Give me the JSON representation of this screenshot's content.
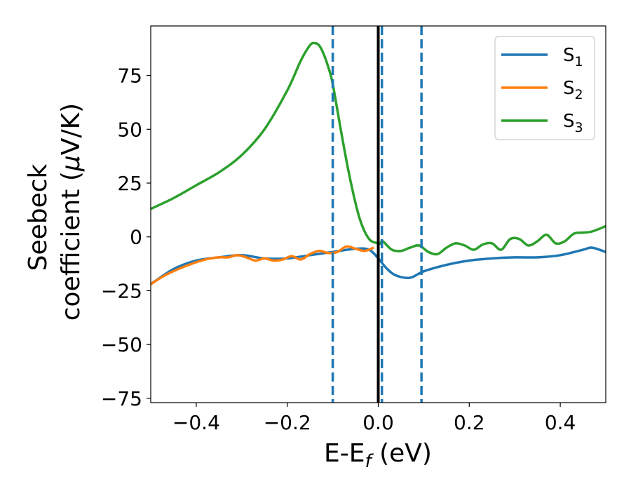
{
  "chart_data": {
    "type": "line",
    "xlabel": "E-E",
    "xlabel_sub": "f",
    "xlabel_unit": " (eV)",
    "ylabel_line1": "Seebeck",
    "ylabel_line2": "coefficient  (",
    "ylabel_mu": "μ",
    "ylabel_unit": "V/K)",
    "xlim": [
      -0.5,
      0.5
    ],
    "ylim": [
      -77,
      98
    ],
    "xticks": [
      -0.4,
      -0.2,
      0.0,
      0.2,
      0.4
    ],
    "xtick_labels": [
      "−0.4",
      "−0.2",
      "0.0",
      "0.2",
      "0.4"
    ],
    "yticks": [
      -75,
      -50,
      -25,
      0,
      25,
      50,
      75
    ],
    "ytick_labels": [
      "−75",
      "−50",
      "−25",
      "0",
      "25",
      "50",
      "75"
    ],
    "grid": false,
    "legend_position": "top-right",
    "vertical_lines": [
      {
        "x": -0.1,
        "style": "dashed",
        "color": "#1f77b4"
      },
      {
        "x": 0.008,
        "style": "dashed",
        "color": "#1f77b4"
      },
      {
        "x": 0.095,
        "style": "dashed",
        "color": "#1f77b4"
      },
      {
        "x": 0.0,
        "style": "solid",
        "color": "#000000"
      }
    ],
    "series": [
      {
        "name": "S",
        "sub": "1",
        "color": "#1f77b4",
        "x": [
          -0.5,
          -0.45,
          -0.4,
          -0.35,
          -0.3,
          -0.25,
          -0.2,
          -0.15,
          -0.1,
          -0.05,
          -0.02,
          0.0,
          0.02,
          0.04,
          0.07,
          0.1,
          0.15,
          0.2,
          0.25,
          0.3,
          0.35,
          0.4,
          0.45,
          0.47,
          0.5
        ],
        "y": [
          -22,
          -15,
          -11,
          -9.5,
          -8.5,
          -10,
          -10,
          -8.5,
          -7,
          -5.5,
          -6,
          -10,
          -15,
          -18,
          -19,
          -16,
          -13,
          -11,
          -10,
          -9.5,
          -9.5,
          -8.5,
          -6,
          -5,
          -7
        ]
      },
      {
        "name": "S",
        "sub": "2",
        "color": "#ff7f0e",
        "x": [
          -0.5,
          -0.47,
          -0.44,
          -0.41,
          -0.38,
          -0.35,
          -0.33,
          -0.31,
          -0.29,
          -0.27,
          -0.25,
          -0.23,
          -0.21,
          -0.19,
          -0.17,
          -0.15,
          -0.13,
          -0.11,
          -0.09,
          -0.07,
          -0.05,
          -0.03,
          -0.01
        ],
        "y": [
          -22,
          -18,
          -15,
          -12.5,
          -10.5,
          -9.5,
          -9.5,
          -8.5,
          -9.5,
          -11,
          -10,
          -11,
          -10.5,
          -9,
          -10.5,
          -8,
          -6.5,
          -7.5,
          -7,
          -4.5,
          -5.5,
          -6.5,
          -5
        ]
      },
      {
        "name": "S",
        "sub": "3",
        "color": "#2ca02c",
        "x": [
          -0.5,
          -0.45,
          -0.4,
          -0.35,
          -0.3,
          -0.25,
          -0.2,
          -0.17,
          -0.15,
          -0.14,
          -0.13,
          -0.12,
          -0.11,
          -0.1,
          -0.08,
          -0.06,
          -0.04,
          -0.02,
          0.0,
          0.005,
          0.01,
          0.03,
          0.05,
          0.07,
          0.09,
          0.11,
          0.13,
          0.15,
          0.17,
          0.19,
          0.21,
          0.23,
          0.25,
          0.27,
          0.29,
          0.31,
          0.33,
          0.35,
          0.37,
          0.39,
          0.41,
          0.43,
          0.45,
          0.47,
          0.5
        ],
        "y": [
          13,
          18,
          24,
          30,
          38,
          50,
          68,
          82,
          89,
          90,
          89,
          85,
          79,
          71,
          47,
          25,
          8,
          -1,
          -3,
          -3,
          -2,
          -6,
          -6.5,
          -5,
          -4,
          -7,
          -8,
          -5,
          -3,
          -4,
          -6,
          -3.5,
          -3,
          -6,
          -1,
          -1,
          -4,
          -2,
          1,
          -3,
          -2,
          1.5,
          2,
          2.5,
          5
        ]
      }
    ]
  }
}
